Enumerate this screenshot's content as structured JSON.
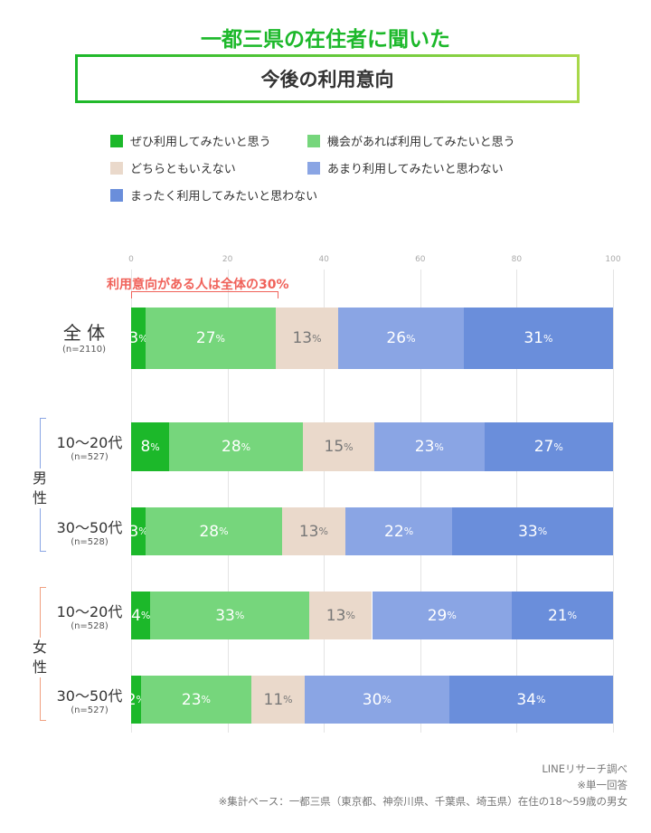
{
  "title": "一都三県の在住者に聞いた",
  "subtitle": "今後の利用意向",
  "note": "利用意向がある人は全体の30%",
  "footer": {
    "source": "LINEリサーチ調べ",
    "single": "※単一回答",
    "base": "※集計ベース：一都三県（東京都、神奈川県、千葉県、埼玉県）在住の18〜59歳の男女"
  },
  "groups": {
    "male": "男\n性",
    "female": "女\n性"
  },
  "chart_data": {
    "type": "stacked-bar-horizontal",
    "xlim": [
      0,
      100
    ],
    "ticks": [
      "0",
      "20",
      "40",
      "60",
      "80",
      "100"
    ],
    "grid": true,
    "legend_position": "top",
    "unit": "%",
    "series": [
      {
        "name": "ぜひ利用してみたいと思う",
        "color": "#1cb82a",
        "text_color": "#ffffff"
      },
      {
        "name": "機会があれば利用してみたいと思う",
        "color": "#76d67c",
        "text_color": "#ffffff"
      },
      {
        "name": "どちらともいえない",
        "color": "#ead9cb",
        "text_color": "#777777"
      },
      {
        "name": "あまり利用してみたいと思わない",
        "color": "#8aa5e4",
        "text_color": "#ffffff"
      },
      {
        "name": "まったく利用してみたいと思わない",
        "color": "#6a8edb",
        "text_color": "#ffffff"
      }
    ],
    "rows": [
      {
        "label": "全 体",
        "n": "(n=2110)",
        "values": [
          3,
          27,
          13,
          26,
          31
        ]
      },
      {
        "group": "男性",
        "label": "10〜20代",
        "n": "(n=527)",
        "values": [
          8,
          28,
          15,
          23,
          27
        ]
      },
      {
        "group": "男性",
        "label": "30〜50代",
        "n": "(n=528)",
        "values": [
          3,
          28,
          13,
          22,
          33
        ]
      },
      {
        "group": "女性",
        "label": "10〜20代",
        "n": "(n=528)",
        "values": [
          4,
          33,
          13,
          29,
          21
        ]
      },
      {
        "group": "女性",
        "label": "30〜50代",
        "n": "(n=527)",
        "values": [
          2,
          23,
          11,
          30,
          34
        ]
      }
    ]
  }
}
